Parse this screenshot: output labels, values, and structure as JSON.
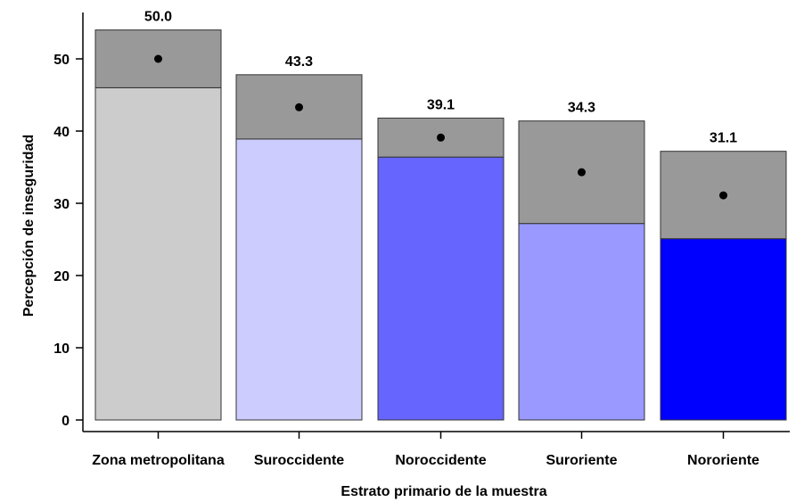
{
  "chart_data": {
    "type": "bar",
    "title": "",
    "xlabel": "Estrato primario de la muestra",
    "ylabel": "Percepción de inseguridad",
    "ylim": [
      0,
      55
    ],
    "yticks": [
      0,
      10,
      20,
      30,
      40,
      50
    ],
    "grid": false,
    "categories": [
      "Zona metropolitana",
      "Suroccidente",
      "Noroccidente",
      "Suroriente",
      "Nororiente"
    ],
    "values": [
      50.0,
      43.3,
      39.1,
      34.3,
      31.1
    ],
    "value_labels": [
      "50.0",
      "43.3",
      "39.1",
      "34.3",
      "31.1"
    ],
    "ci_lower": [
      46.0,
      38.9,
      36.4,
      27.2,
      25.1
    ],
    "ci_upper": [
      54.0,
      47.8,
      41.8,
      41.4,
      37.2
    ],
    "bar_colors": [
      "#cccccc",
      "#ccccff",
      "#6666ff",
      "#9999ff",
      "#0000ff"
    ],
    "ci_color": "#999999",
    "point_color": "#000000"
  }
}
